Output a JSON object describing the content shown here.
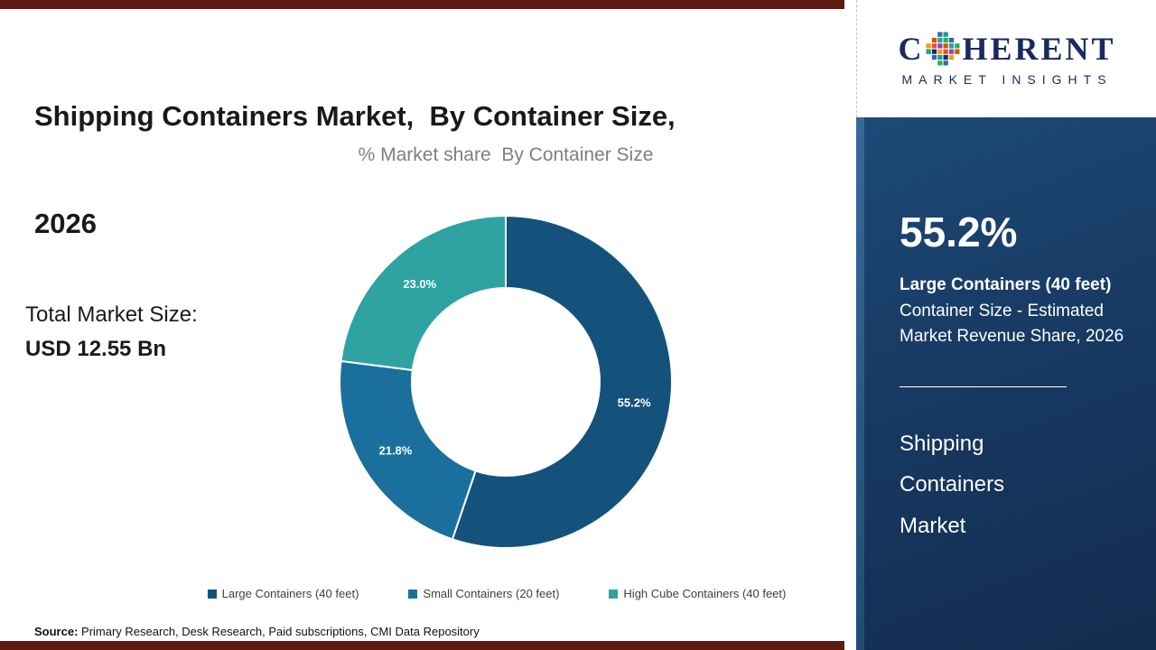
{
  "accent_colors": {
    "bar_maroon": "#5f1b11",
    "panel_navy": "#173a63",
    "logo_navy": "#1b2a5e"
  },
  "header": {
    "title_line1": "Shipping Containers Market,  By Container Size,",
    "title_line2": "2026"
  },
  "logo": {
    "prefix": "C",
    "suffix": "HERENT",
    "tagline": "MARKET INSIGHTS",
    "mosaic_colors": [
      "#2e9e9e",
      "#f39c12",
      "#27ae60",
      "#e74c3c",
      "#2471a3",
      "#8e44ad",
      "#16a085",
      "#d35400",
      "#1b2a5e"
    ]
  },
  "chart_data": {
    "type": "pie",
    "donut": true,
    "title": "% Market share  By Container Size",
    "categories": [
      "Large Containers (40 feet)",
      "Small Containers (20 feet)",
      "High Cube Containers (40 feet)"
    ],
    "values": [
      55.2,
      21.8,
      23.0
    ],
    "labels": [
      "55.2%",
      "21.8%",
      "23.0%"
    ],
    "colors": [
      "#15527b",
      "#1b6f9c",
      "#2fa3a1"
    ],
    "start_angle_deg": 0,
    "direction": "clockwise",
    "legend_position": "bottom"
  },
  "summary": {
    "total_label": "Total Market Size:",
    "total_value": "USD 12.55 Bn"
  },
  "panel": {
    "value": "55.2%",
    "title": "Large Containers (40 feet)",
    "description": "Container Size - Estimated Market Revenue Share, 2026",
    "brand": "Shipping Containers Market"
  },
  "source": {
    "label": "Source:",
    "text": " Primary Research, Desk Research, Paid subscriptions, CMI Data Repository"
  }
}
